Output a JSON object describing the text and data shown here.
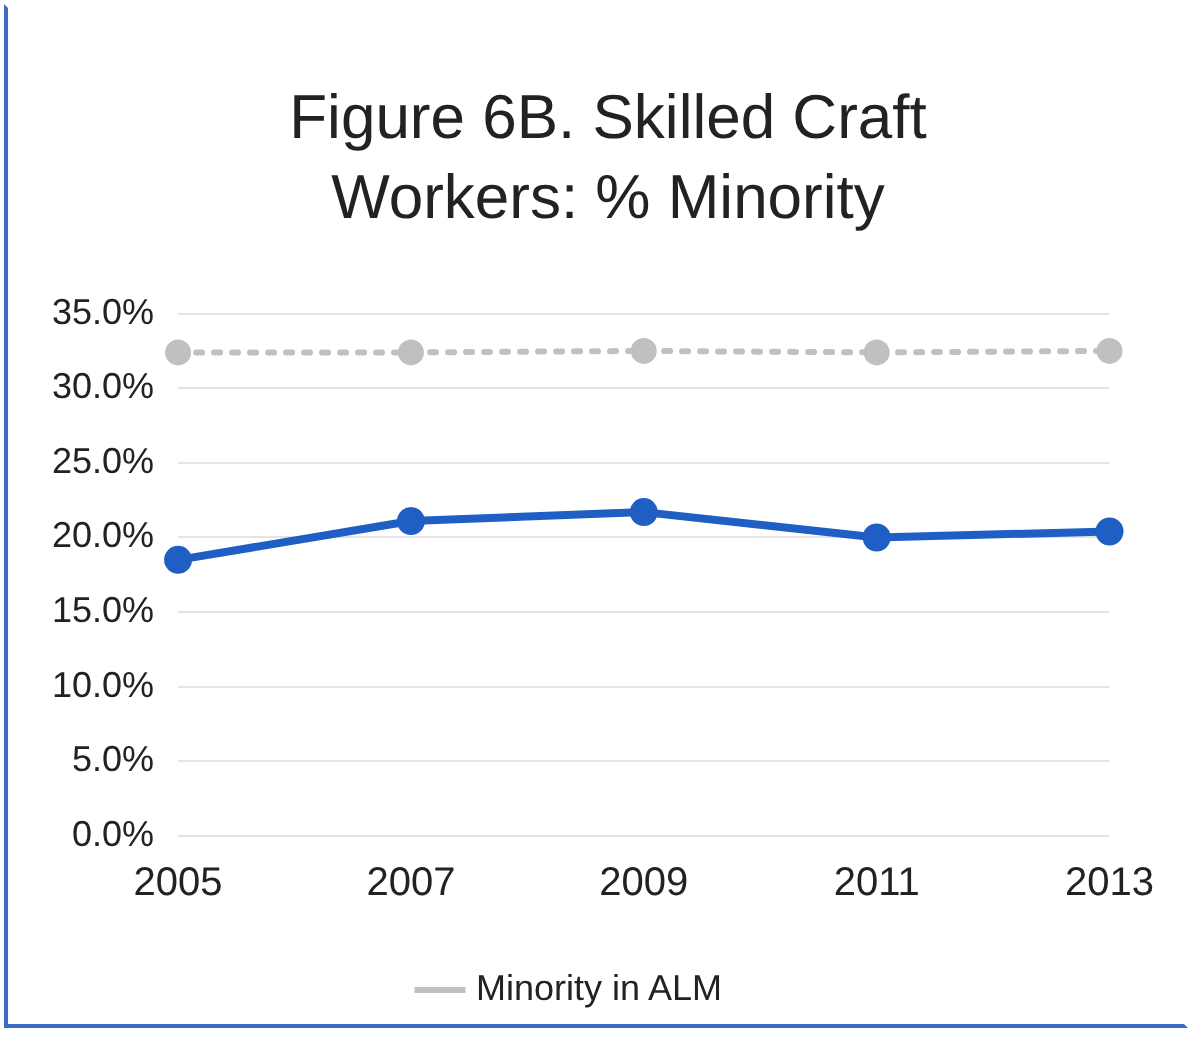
{
  "chart_data": {
    "type": "line",
    "title": "Figure 6B. Skilled Craft Workers: % Minority",
    "categories": [
      "2005",
      "2007",
      "2009",
      "2011",
      "2013"
    ],
    "series": [
      {
        "name": "Minority in ALM",
        "color": "#c0c0c0",
        "values": [
          32.4,
          32.4,
          32.5,
          32.4,
          32.5
        ],
        "line_style": "dotted",
        "marker": "circle"
      },
      {
        "color": "#1f5fc4",
        "values": [
          18.5,
          21.1,
          21.7,
          20.0,
          20.4
        ],
        "line_style": "solid",
        "marker": "circle"
      }
    ],
    "ylim": [
      0,
      35
    ],
    "yticks": [
      {
        "value": 0,
        "label": "0.0%"
      },
      {
        "value": 5,
        "label": "5.0%"
      },
      {
        "value": 10,
        "label": "10.0%"
      },
      {
        "value": 15,
        "label": "15.0%"
      },
      {
        "value": 20,
        "label": "20.0%"
      },
      {
        "value": 25,
        "label": "25.0%"
      },
      {
        "value": 30,
        "label": "30.0%"
      },
      {
        "value": 35,
        "label": "35.0%"
      }
    ],
    "grid": "y",
    "legend": "bottom"
  }
}
